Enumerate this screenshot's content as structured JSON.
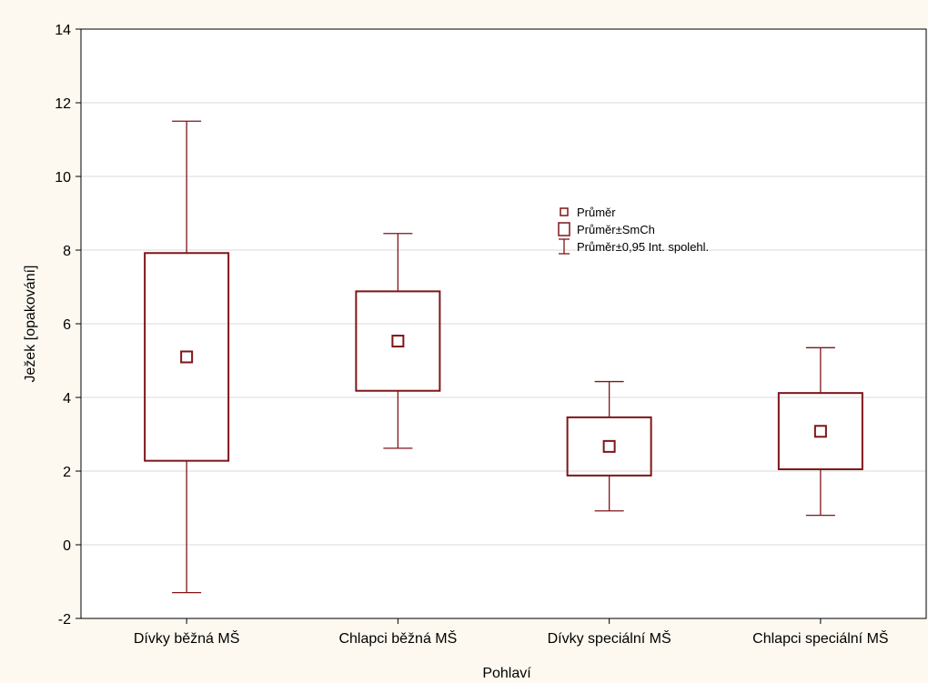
{
  "chart_data": {
    "type": "box",
    "title": "",
    "xlabel": "Pohlaví",
    "ylabel": "Ježek [opakování]",
    "ylim": [
      -2,
      14
    ],
    "yticks": [
      -2,
      0,
      2,
      4,
      6,
      8,
      10,
      12,
      14
    ],
    "ytick_labels": [
      "-2",
      "0",
      "2",
      "4",
      "6",
      "8",
      "10",
      "12",
      "14"
    ],
    "grid": true,
    "legend_position": "center",
    "legend": [
      {
        "key": "mean",
        "label": "Průměr"
      },
      {
        "key": "se",
        "label": "Průměr±SmCh"
      },
      {
        "key": "ci",
        "label": "Průměr±0,95 Int. spolehl."
      }
    ],
    "categories": [
      "Dívky běžná MŠ",
      "Chlapci běžná MŠ",
      "Dívky speciální MŠ",
      "Chlapci speciální MŠ"
    ],
    "boxes": [
      {
        "category": "Dívky běžná MŠ",
        "mean": 5.1,
        "se_low": 2.28,
        "se_high": 7.92,
        "ci_low": -1.3,
        "ci_high": 11.5
      },
      {
        "category": "Chlapci běžná MŠ",
        "mean": 5.53,
        "se_low": 4.18,
        "se_high": 6.88,
        "ci_low": 2.62,
        "ci_high": 8.45
      },
      {
        "category": "Dívky speciální MŠ",
        "mean": 2.67,
        "se_low": 1.88,
        "se_high": 3.46,
        "ci_low": 0.92,
        "ci_high": 4.43
      },
      {
        "category": "Chlapci speciální MŠ",
        "mean": 3.08,
        "se_low": 2.05,
        "se_high": 4.12,
        "ci_low": 0.8,
        "ci_high": 5.35
      }
    ],
    "colors": {
      "series": "#7f1518",
      "grid": "#d9d9d9",
      "plot_background": "#ffffff",
      "page_background": "#fdf9f0"
    }
  }
}
